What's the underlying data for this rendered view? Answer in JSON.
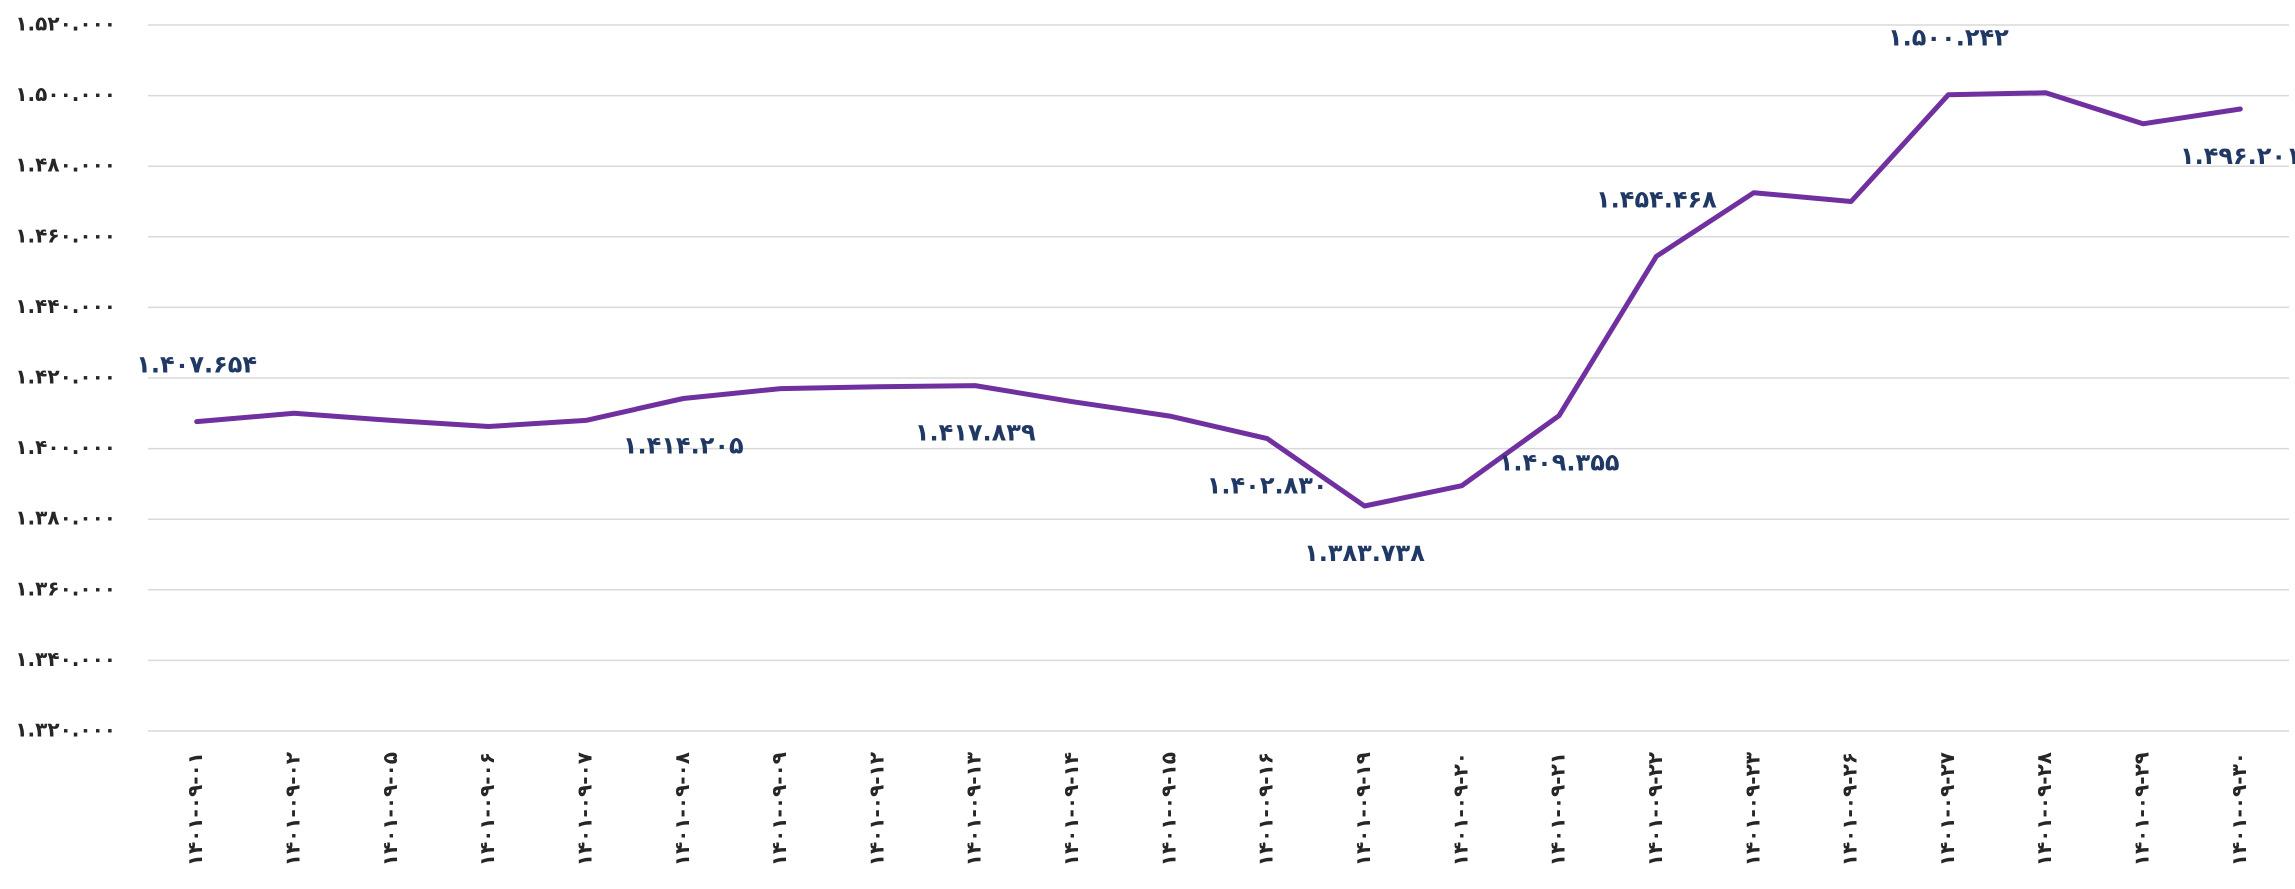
{
  "chart_data": {
    "type": "line",
    "categories": [
      "۱۴۰۱-۰۹-۰۱",
      "۱۴۰۱-۰۹-۰۲",
      "۱۴۰۱-۰۹-۰۵",
      "۱۴۰۱-۰۹-۰۶",
      "۱۴۰۱-۰۹-۰۷",
      "۱۴۰۱-۰۹-۰۸",
      "۱۴۰۱-۰۹-۰۹",
      "۱۴۰۱-۰۹-۱۲",
      "۱۴۰۱-۰۹-۱۳",
      "۱۴۰۱-۰۹-۱۴",
      "۱۴۰۱-۰۹-۱۵",
      "۱۴۰۱-۰۹-۱۶",
      "۱۴۰۱-۰۹-۱۹",
      "۱۴۰۱-۰۹-۲۰",
      "۱۴۰۱-۰۹-۲۱",
      "۱۴۰۱-۰۹-۲۲",
      "۱۴۰۱-۰۹-۲۳",
      "۱۴۰۱-۰۹-۲۶",
      "۱۴۰۱-۰۹-۲۷",
      "۱۴۰۱-۰۹-۲۸",
      "۱۴۰۱-۰۹-۲۹",
      "۱۴۰۱-۰۹-۳۰"
    ],
    "values": [
      1407654,
      1410000,
      1408000,
      1406250,
      1408000,
      1414205,
      1417000,
      1417500,
      1417839,
      1413300,
      1409200,
      1402830,
      1383738,
      1389500,
      1409355,
      1454468,
      1472500,
      1470000,
      1500242,
      1500800,
      1492000,
      1496201
    ],
    "value_labels": [
      "۱.۴۰۷.۶۵۴",
      null,
      null,
      null,
      null,
      "۱.۴۱۴.۲۰۵",
      null,
      null,
      "۱.۴۱۷.۸۳۹",
      null,
      null,
      "۱.۴۰۲.۸۳۰",
      "۱.۳۸۳.۷۳۸",
      null,
      "۱.۴۰۹.۳۵۵",
      "۱.۴۵۴.۴۶۸",
      null,
      null,
      "۱.۵۰۰.۲۴۲",
      null,
      null,
      "۱.۴۹۶.۲۰۱"
    ],
    "color": "#7030a0",
    "ylim": [
      1320000,
      1520000
    ],
    "yticks": [
      {
        "value": 1520000,
        "label": "۱.۵۲۰.۰۰۰"
      },
      {
        "value": 1500000,
        "label": "۱.۵۰۰.۰۰۰"
      },
      {
        "value": 1480000,
        "label": "۱.۴۸۰.۰۰۰"
      },
      {
        "value": 1460000,
        "label": "۱.۴۶۰.۰۰۰"
      },
      {
        "value": 1440000,
        "label": "۱.۴۴۰.۰۰۰"
      },
      {
        "value": 1420000,
        "label": "۱.۴۲۰.۰۰۰"
      },
      {
        "value": 1400000,
        "label": "۱.۴۰۰.۰۰۰"
      },
      {
        "value": 1380000,
        "label": "۱.۳۸۰.۰۰۰"
      },
      {
        "value": 1360000,
        "label": "۱.۳۶۰.۰۰۰"
      },
      {
        "value": 1340000,
        "label": "۱.۳۴۰.۰۰۰"
      },
      {
        "value": 1320000,
        "label": "۱.۳۲۰.۰۰۰"
      }
    ],
    "grid": true
  }
}
